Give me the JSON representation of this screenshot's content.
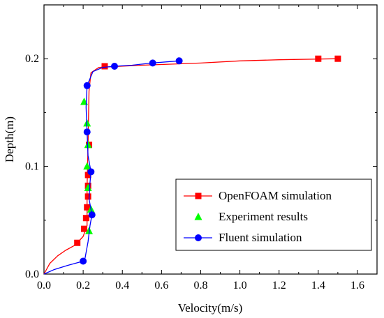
{
  "chart_data": {
    "type": "line",
    "xlabel": "Velocity(m/s)",
    "ylabel": "Depth(m)",
    "xlim": [
      0.0,
      1.7
    ],
    "ylim": [
      0.0,
      0.25
    ],
    "x_ticks": [
      0.0,
      0.2,
      0.4,
      0.6,
      0.8,
      1.0,
      1.2,
      1.4,
      1.6
    ],
    "x_tick_labels": [
      "0.0",
      "0.2",
      "0.4",
      "0.6",
      "0.8",
      "1.0",
      "1.2",
      "1.4",
      "1.6"
    ],
    "y_ticks": [
      0.0,
      0.1,
      0.2
    ],
    "y_tick_labels": [
      "0.0",
      "0.1",
      "0.2"
    ],
    "legend_position": "bottom-right",
    "series": [
      {
        "name": "OpenFOAM simulation",
        "color": "#ff0000",
        "marker": "square",
        "line": [
          [
            0.0,
            0.0
          ],
          [
            0.03,
            0.01
          ],
          [
            0.07,
            0.017
          ],
          [
            0.11,
            0.022
          ],
          [
            0.16,
            0.027
          ],
          [
            0.2,
            0.035
          ],
          [
            0.22,
            0.045
          ],
          [
            0.22,
            0.08
          ],
          [
            0.225,
            0.12
          ],
          [
            0.23,
            0.17
          ],
          [
            0.24,
            0.187
          ],
          [
            0.28,
            0.192
          ],
          [
            0.5,
            0.194
          ],
          [
            0.8,
            0.196
          ],
          [
            1.0,
            0.198
          ],
          [
            1.2,
            0.199
          ],
          [
            1.5,
            0.2
          ]
        ],
        "markers": [
          [
            0.17,
            0.029
          ],
          [
            0.205,
            0.042
          ],
          [
            0.215,
            0.052
          ],
          [
            0.22,
            0.062
          ],
          [
            0.225,
            0.072
          ],
          [
            0.225,
            0.082
          ],
          [
            0.225,
            0.092
          ],
          [
            0.23,
            0.12
          ],
          [
            0.31,
            0.193
          ],
          [
            1.4,
            0.2
          ],
          [
            1.5,
            0.2
          ]
        ]
      },
      {
        "name": "Experiment results",
        "color": "#00ff00",
        "marker": "triangle",
        "markers": [
          [
            0.23,
            0.04
          ],
          [
            0.24,
            0.06
          ],
          [
            0.225,
            0.08
          ],
          [
            0.22,
            0.1
          ],
          [
            0.225,
            0.12
          ],
          [
            0.22,
            0.14
          ],
          [
            0.205,
            0.16
          ]
        ]
      },
      {
        "name": "Fluent simulation",
        "color": "#0000ff",
        "marker": "circle",
        "line": [
          [
            0.0,
            0.0
          ],
          [
            0.05,
            0.004
          ],
          [
            0.12,
            0.008
          ],
          [
            0.2,
            0.012
          ],
          [
            0.21,
            0.015
          ],
          [
            0.225,
            0.03
          ],
          [
            0.235,
            0.045
          ],
          [
            0.245,
            0.055
          ],
          [
            0.23,
            0.07
          ],
          [
            0.235,
            0.085
          ],
          [
            0.24,
            0.095
          ],
          [
            0.225,
            0.11
          ],
          [
            0.22,
            0.132
          ],
          [
            0.215,
            0.155
          ],
          [
            0.22,
            0.175
          ],
          [
            0.25,
            0.188
          ],
          [
            0.3,
            0.192
          ],
          [
            0.36,
            0.193
          ],
          [
            0.45,
            0.194
          ],
          [
            0.55,
            0.196
          ],
          [
            0.69,
            0.198
          ]
        ],
        "markers": [
          [
            0.2,
            0.012
          ],
          [
            0.245,
            0.055
          ],
          [
            0.24,
            0.095
          ],
          [
            0.22,
            0.132
          ],
          [
            0.22,
            0.175
          ],
          [
            0.36,
            0.193
          ],
          [
            0.555,
            0.196
          ],
          [
            0.69,
            0.198
          ]
        ]
      }
    ]
  }
}
